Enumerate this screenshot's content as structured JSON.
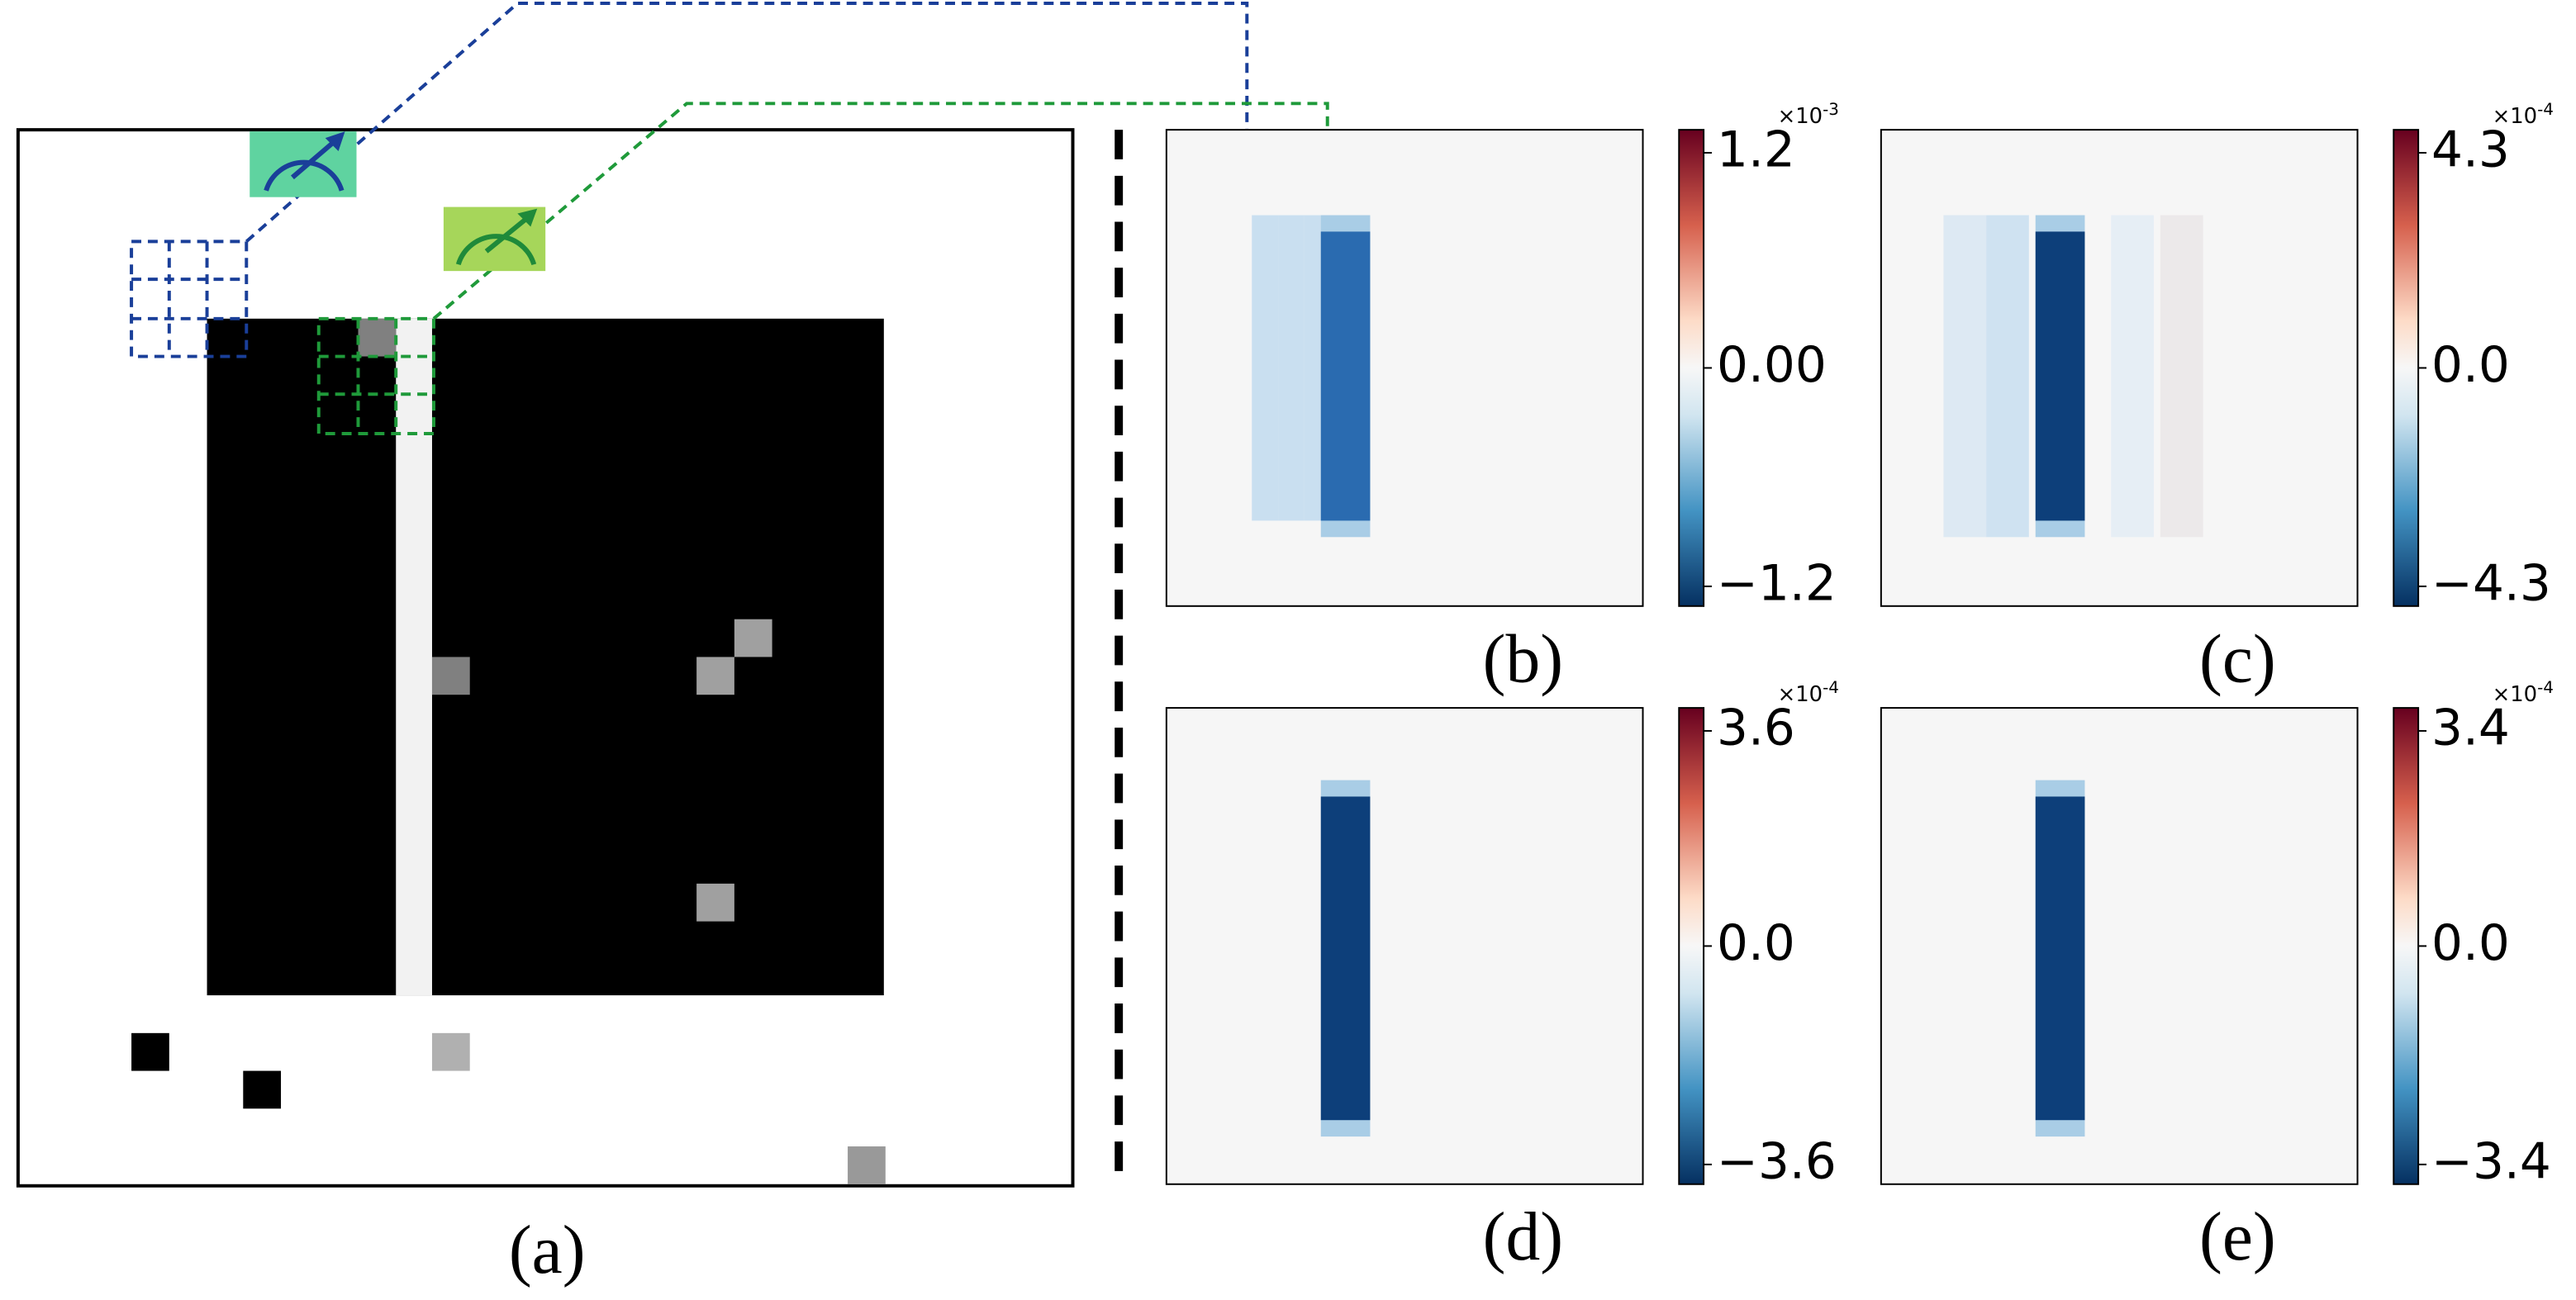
{
  "panels": [
    {
      "caption": "(a)"
    },
    {
      "caption": "(b)",
      "colorbar": {
        "ticks": [
          "1.2",
          "0.00",
          "−1.2"
        ],
        "scale_base": "×10",
        "scale_exp": "-3"
      }
    },
    {
      "caption": "(c)",
      "colorbar": {
        "ticks": [
          "4.3",
          "0.0",
          "−4.3"
        ],
        "scale_base": "×10",
        "scale_exp": "-4"
      }
    },
    {
      "caption": "(d)",
      "colorbar": {
        "ticks": [
          "3.6",
          "0.0",
          "−3.6"
        ],
        "scale_base": "×10",
        "scale_exp": "-4"
      }
    },
    {
      "caption": "(e)",
      "colorbar": {
        "ticks": [
          "3.4",
          "0.0",
          "−3.4"
        ],
        "scale_base": "×10",
        "scale_exp": "-4"
      }
    }
  ]
}
